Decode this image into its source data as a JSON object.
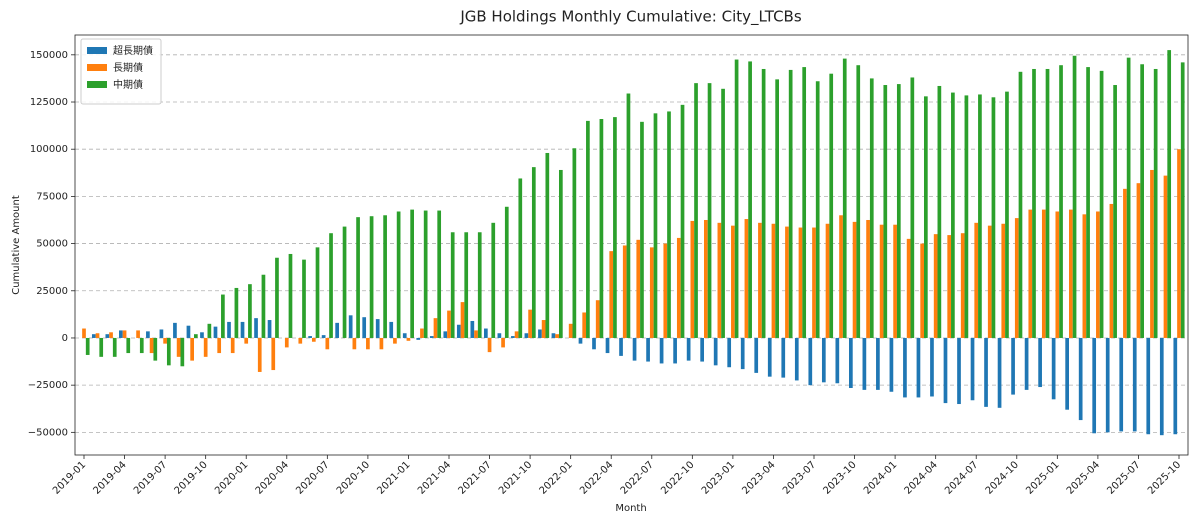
{
  "chart_data": {
    "type": "bar",
    "title": "JGB Holdings Monthly Cumulative: City_LTCBs",
    "x_label": "Month",
    "y_label": "Cumulative Amount",
    "legend": "upper left",
    "grid": true,
    "ylim": [
      -62000,
      160500
    ],
    "yticks": [
      {
        "value": -50000,
        "label": "−50000"
      },
      {
        "value": -25000,
        "label": "−25000"
      },
      0,
      25000,
      50000,
      75000,
      100000,
      125000,
      150000
    ],
    "categories": [
      "2019-01",
      null,
      null,
      "2019-04",
      null,
      null,
      "2019-07",
      null,
      null,
      "2019-10",
      null,
      null,
      "2020-01",
      null,
      null,
      "2020-04",
      null,
      null,
      "2020-07",
      null,
      null,
      "2020-10",
      null,
      null,
      "2021-01",
      null,
      null,
      "2021-04",
      null,
      null,
      "2021-07",
      null,
      null,
      "2021-10",
      null,
      null,
      "2022-01",
      null,
      null,
      "2022-04",
      null,
      null,
      "2022-07",
      null,
      null,
      "2022-10",
      null,
      null,
      "2023-01",
      null,
      null,
      "2023-04",
      null,
      null,
      "2023-07",
      null,
      null,
      "2023-10",
      null,
      null,
      "2024-01",
      null,
      null,
      "2024-04",
      null,
      null,
      "2024-07",
      null,
      null,
      "2024-10",
      null,
      null,
      "2025-01",
      null,
      null,
      "2025-04",
      null,
      null,
      "2025-07",
      null,
      null,
      "2025-10"
    ],
    "series": [
      {
        "name": "超長期債",
        "color": "#1f77b4",
        "values": [
          0,
          2000,
          2000,
          4000,
          0,
          3500,
          4500,
          8000,
          6500,
          3000,
          6000,
          8500,
          8500,
          10500,
          9500,
          0,
          0,
          1000,
          1500,
          8000,
          12000,
          11000,
          10000,
          8500,
          2500,
          -1000,
          1000,
          3500,
          7000,
          9000,
          5000,
          2500,
          1000,
          2500,
          4500,
          2500,
          0,
          -3000,
          -6000,
          -8000,
          -9500,
          -12000,
          -12500,
          -13500,
          -13500,
          -12000,
          -12500,
          -14500,
          -15500,
          -16500,
          -18500,
          -20500,
          -21000,
          -22500,
          -25000,
          -23500,
          -24000,
          -26500,
          -27500,
          -27500,
          -28500,
          -31500,
          -31500,
          -31000,
          -34500,
          -35000,
          -33000,
          -36500,
          -37000,
          -30000,
          -27500,
          -26000,
          -32500,
          -38000,
          -43500,
          -50500,
          -50000,
          -49500,
          -49500,
          -51000,
          -51500,
          -51000
        ]
      },
      {
        "name": "長期債",
        "color": "#ff7f0e",
        "values": [
          5000,
          2500,
          3000,
          4000,
          4000,
          -8000,
          -3000,
          -10000,
          -12000,
          -10000,
          -8000,
          -8000,
          -3000,
          -18000,
          -17000,
          -5000,
          -3000,
          -2000,
          -6000,
          0,
          -6000,
          -6000,
          -6000,
          -3000,
          -1500,
          5000,
          10500,
          14500,
          19000,
          4000,
          -7500,
          -5000,
          3500,
          15000,
          9500,
          2000,
          7500,
          13500,
          20000,
          46000,
          49000,
          52000,
          48000,
          50000,
          53000,
          62000,
          62500,
          61000,
          59500,
          63000,
          61000,
          60500,
          59000,
          58500,
          58500,
          60500,
          65000,
          61500,
          62500,
          60000,
          60000,
          52500,
          50000,
          55000,
          54500,
          55500,
          61000,
          59500,
          60500,
          63500,
          68000,
          68000,
          67000,
          68000,
          65500,
          67000,
          71000,
          79000,
          82000,
          89000,
          86000,
          100000
        ]
      },
      {
        "name": "中期債",
        "color": "#2ca02c",
        "values": [
          -9000,
          -10000,
          -10000,
          -8000,
          -8000,
          -12000,
          -14500,
          -15000,
          2000,
          7500,
          23000,
          26500,
          28500,
          33500,
          42500,
          44500,
          41500,
          48000,
          55500,
          59000,
          64000,
          64500,
          65000,
          67000,
          68000,
          67500,
          67500,
          56000,
          56000,
          56000,
          61000,
          69500,
          84500,
          90500,
          98000,
          89000,
          100500,
          115000,
          116000,
          117000,
          129500,
          114500,
          119000,
          120000,
          123500,
          135000,
          135000,
          132000,
          147500,
          146500,
          142500,
          137000,
          142000,
          143500,
          136000,
          140000,
          148000,
          144500,
          137500,
          134000,
          134500,
          138000,
          128000,
          133500,
          130000,
          128500,
          129000,
          127500,
          130500,
          141000,
          142500,
          142500,
          144500,
          149500,
          143500,
          141500,
          134000,
          148500,
          145000,
          142500,
          152500,
          146000
        ]
      }
    ]
  }
}
